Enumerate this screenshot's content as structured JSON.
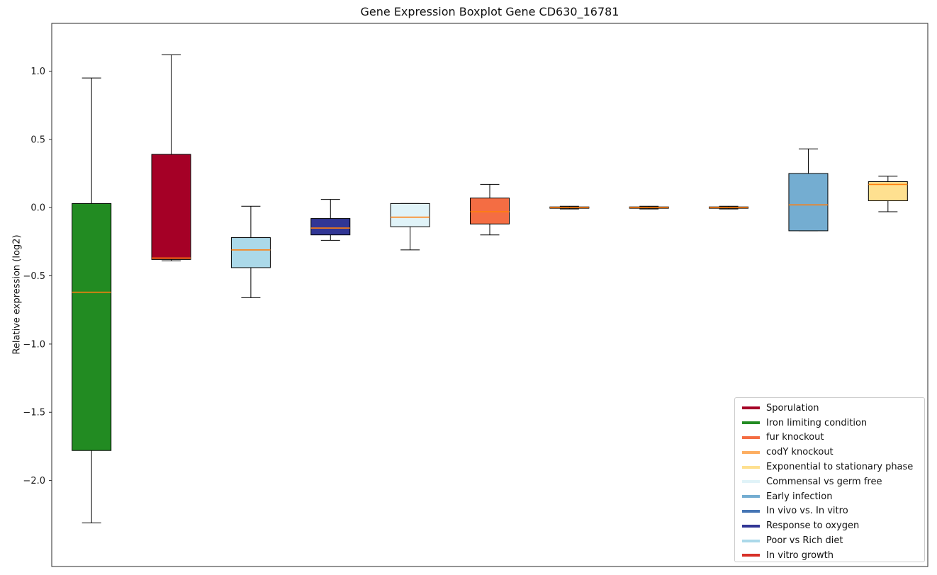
{
  "chart_data": {
    "type": "boxplot",
    "title": "Gene Expression Boxplot Gene CD630_16781",
    "ylabel": "Relative expression (log2)",
    "xlabel": "",
    "ylim": [
      -2.63,
      1.35
    ],
    "yticks": [
      1.0,
      0.5,
      0.0,
      -0.5,
      -1.0,
      -1.5,
      -2.0
    ],
    "grid": false,
    "legend_position": "lower right",
    "median_color": "#FF7F0E",
    "box_edge_color": "#000000",
    "series": [
      {
        "name": "Iron limiting condition",
        "color": "#228B22",
        "whisker_low": -2.31,
        "q1": -1.78,
        "median": -0.62,
        "q3": 0.03,
        "whisker_high": 0.95
      },
      {
        "name": "Sporulation",
        "color": "#A50026",
        "whisker_low": -0.39,
        "q1": -0.38,
        "median": -0.37,
        "q3": 0.39,
        "whisker_high": 1.12
      },
      {
        "name": "Poor vs Rich diet",
        "color": "#ABD9E9",
        "whisker_low": -0.66,
        "q1": -0.44,
        "median": -0.31,
        "q3": -0.22,
        "whisker_high": 0.01
      },
      {
        "name": "Response to oxygen",
        "color": "#313695",
        "whisker_low": -0.24,
        "q1": -0.2,
        "median": -0.15,
        "q3": -0.08,
        "whisker_high": 0.06
      },
      {
        "name": "Commensal vs germ free",
        "color": "#E0F3F8",
        "whisker_low": -0.31,
        "q1": -0.14,
        "median": -0.07,
        "q3": 0.03,
        "whisker_high": 0.03
      },
      {
        "name": "fur knockout",
        "color": "#F46D43",
        "whisker_low": -0.2,
        "q1": -0.12,
        "median": -0.03,
        "q3": 0.07,
        "whisker_high": 0.17
      },
      {
        "name": "In vivo vs. In vitro",
        "color": "#4575B4",
        "whisker_low": -0.01,
        "q1": -0.005,
        "median": 0.0,
        "q3": 0.005,
        "whisker_high": 0.01
      },
      {
        "name": "codY knockout",
        "color": "#FDAE61",
        "whisker_low": -0.01,
        "q1": -0.005,
        "median": 0.0,
        "q3": 0.005,
        "whisker_high": 0.01
      },
      {
        "name": "In vitro growth",
        "color": "#D73027",
        "whisker_low": -0.01,
        "q1": -0.005,
        "median": 0.0,
        "q3": 0.005,
        "whisker_high": 0.01
      },
      {
        "name": "Early infection",
        "color": "#74ADD1",
        "whisker_low": -0.17,
        "q1": -0.17,
        "median": 0.02,
        "q3": 0.25,
        "whisker_high": 0.43
      },
      {
        "name": "Exponential to stationary phase",
        "color": "#FEE090",
        "whisker_low": -0.03,
        "q1": 0.05,
        "median": 0.17,
        "q3": 0.19,
        "whisker_high": 0.23
      }
    ],
    "legend_order": [
      "Sporulation",
      "Iron limiting condition",
      "fur knockout",
      "codY knockout",
      "Exponential to stationary phase",
      "Commensal vs germ free",
      "Early infection",
      "In vivo vs. In vitro",
      "Response to oxygen",
      "Poor vs Rich diet",
      "In vitro growth"
    ]
  }
}
